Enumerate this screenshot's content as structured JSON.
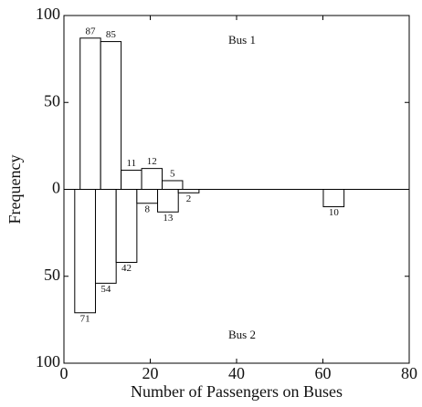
{
  "chart_data": [
    {
      "type": "histogram",
      "label": "Bus 1",
      "ylabel": "Frequency",
      "direction": "up",
      "bins": [
        3.75,
        8.5,
        13.25,
        18,
        22.75,
        27.5
      ],
      "values": [
        87,
        85,
        11,
        12,
        5
      ],
      "xlim": [
        0,
        80
      ],
      "ylim": [
        0,
        100
      ],
      "yticks": [
        0,
        50,
        100
      ],
      "color": "#ffffff"
    },
    {
      "type": "histogram",
      "label": "Bus 2",
      "xlabel": "Number of Passengers on Buses",
      "direction": "down",
      "bins": [
        2.5,
        7.3,
        12.1,
        16.9,
        21.7,
        26.5,
        31.3,
        36.1,
        40.9,
        45.7,
        50.5,
        55.3,
        60.1,
        64.9
      ],
      "values": [
        71,
        54,
        42,
        8,
        13,
        2,
        0,
        0,
        0,
        0,
        0,
        0,
        10
      ],
      "xlim": [
        0,
        80
      ],
      "ylim": [
        0,
        100
      ],
      "yticks": [
        50,
        100
      ],
      "xticks": [
        0,
        20,
        40,
        60,
        80
      ],
      "color": "#ffffff"
    }
  ]
}
